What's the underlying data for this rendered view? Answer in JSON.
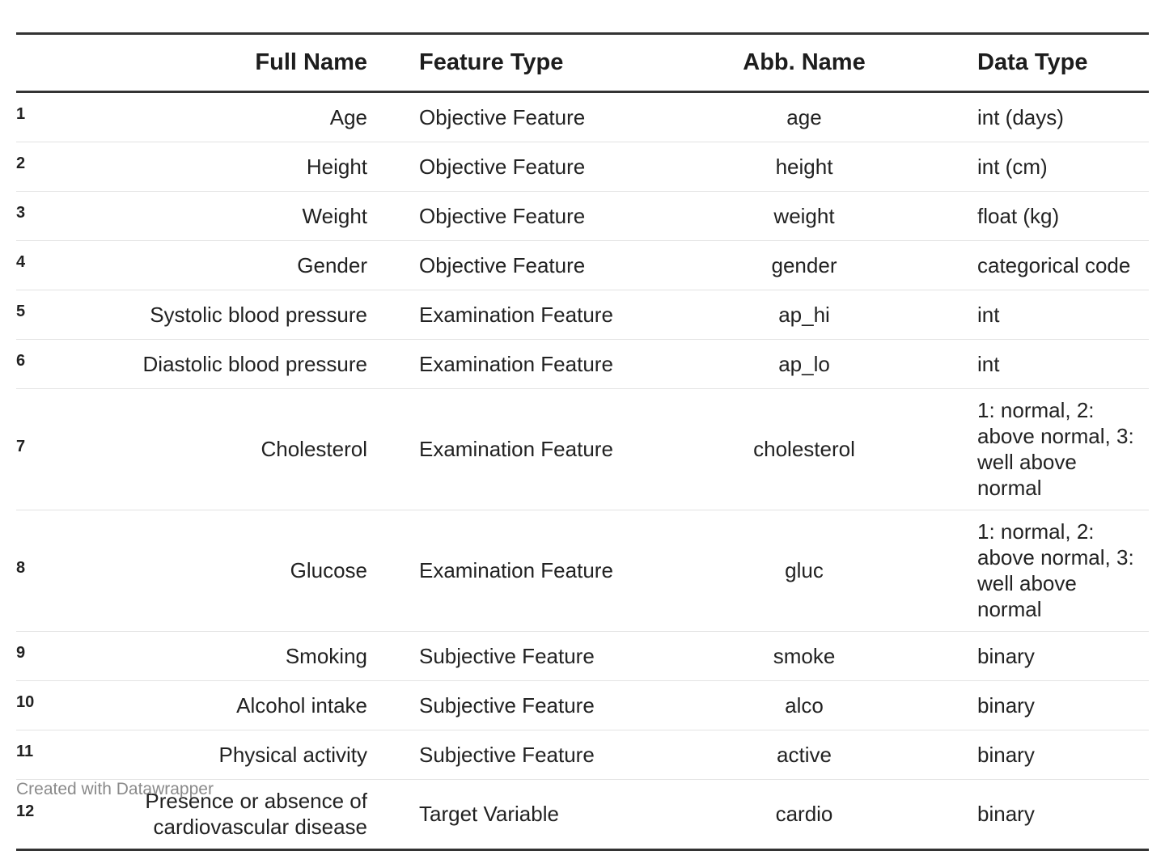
{
  "chart_data": {
    "type": "table",
    "columns": [
      "",
      "Full Name",
      "Feature Type",
      "Abb. Name",
      "Data Type"
    ],
    "rows": [
      {
        "idx": "1",
        "full_name": "Age",
        "feature_type": "Objective Feature",
        "abb_name": "age",
        "data_type": "int (days)"
      },
      {
        "idx": "2",
        "full_name": "Height",
        "feature_type": "Objective Feature",
        "abb_name": "height",
        "data_type": "int (cm)"
      },
      {
        "idx": "3",
        "full_name": "Weight",
        "feature_type": "Objective Feature",
        "abb_name": "weight",
        "data_type": "float (kg)"
      },
      {
        "idx": "4",
        "full_name": "Gender",
        "feature_type": "Objective Feature",
        "abb_name": "gender",
        "data_type": "categorical code"
      },
      {
        "idx": "5",
        "full_name": "Systolic blood pressure",
        "feature_type": "Examination Feature",
        "abb_name": "ap_hi",
        "data_type": "int"
      },
      {
        "idx": "6",
        "full_name": "Diastolic blood pressure",
        "feature_type": "Examination Feature",
        "abb_name": "ap_lo",
        "data_type": "int"
      },
      {
        "idx": "7",
        "full_name": "Cholesterol",
        "feature_type": "Examination Feature",
        "abb_name": "cholesterol",
        "data_type": "1: normal, 2: above normal, 3: well above normal"
      },
      {
        "idx": "8",
        "full_name": "Glucose",
        "feature_type": "Examination Feature",
        "abb_name": "gluc",
        "data_type": "1: normal, 2: above normal, 3: well above normal"
      },
      {
        "idx": "9",
        "full_name": "Smoking",
        "feature_type": "Subjective Feature",
        "abb_name": "smoke",
        "data_type": "binary"
      },
      {
        "idx": "10",
        "full_name": "Alcohol intake",
        "feature_type": "Subjective Feature",
        "abb_name": "alco",
        "data_type": "binary"
      },
      {
        "idx": "11",
        "full_name": "Physical activity",
        "feature_type": "Subjective Feature",
        "abb_name": "active",
        "data_type": "binary"
      },
      {
        "idx": "12",
        "full_name": "Presence or absence of cardiovascular disease",
        "feature_type": "Target Variable",
        "abb_name": "cardio",
        "data_type": "binary"
      }
    ]
  },
  "footer": {
    "credit": "Created with Datawrapper"
  }
}
